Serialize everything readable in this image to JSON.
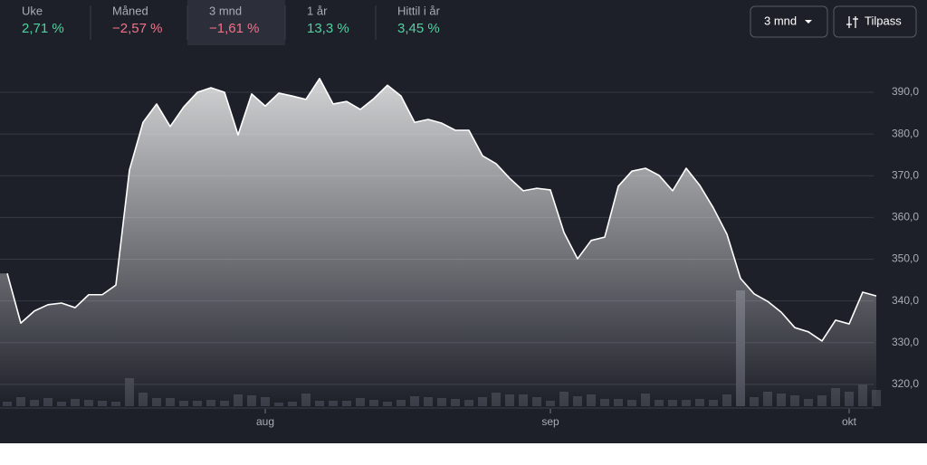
{
  "tabs": [
    {
      "label": "Uke",
      "value": "2,71 %",
      "color": "#4fd1a0"
    },
    {
      "label": "Måned",
      "value": "−2,57 %",
      "color": "#f0728a"
    },
    {
      "label": "3 mnd",
      "value": "−1,61 %",
      "color": "#f0728a",
      "selected": true
    },
    {
      "label": "1 år",
      "value": "13,3 %",
      "color": "#4fd1a0"
    },
    {
      "label": "Hittil i år",
      "value": "3,45 %",
      "color": "#4fd1a0"
    }
  ],
  "period_select": "3 mnd",
  "customize_button": "Tilpass",
  "chart_data": {
    "type": "line",
    "categories": [
      null,
      null,
      null,
      null,
      null,
      null,
      null,
      null,
      null,
      null,
      null,
      null,
      null,
      null,
      null,
      null,
      null,
      null,
      null,
      "aug",
      null,
      null,
      null,
      null,
      null,
      null,
      null,
      null,
      null,
      null,
      null,
      null,
      null,
      null,
      null,
      null,
      null,
      null,
      null,
      null,
      "sep",
      null,
      null,
      null,
      null,
      null,
      null,
      null,
      null,
      null,
      null,
      null,
      null,
      null,
      null,
      null,
      null,
      null,
      null,
      null,
      null,
      null,
      "okt",
      null,
      null
    ],
    "values": [
      346.6,
      334.7,
      337.6,
      339.1,
      339.5,
      338.4,
      341.5,
      341.5,
      343.8,
      371.4,
      382.8,
      387.2,
      381.8,
      386.5,
      390.0,
      391.1,
      390.0,
      379.8,
      389.6,
      386.7,
      389.8,
      389.1,
      388.3,
      393.3,
      387.2,
      387.8,
      385.9,
      388.5,
      391.7,
      389.1,
      382.8,
      383.5,
      382.6,
      380.9,
      380.9,
      374.8,
      372.9,
      369.4,
      366.4,
      367.0,
      366.6,
      356.4,
      350.1,
      354.5,
      355.3,
      367.5,
      371.1,
      371.8,
      370.1,
      366.4,
      371.8,
      367.7,
      362.3,
      356.0,
      345.4,
      341.7,
      339.9,
      337.3,
      333.6,
      332.6,
      330.4,
      335.4,
      334.5,
      342.1,
      341.2
    ],
    "volume": [
      5,
      10,
      7,
      9,
      5,
      8,
      7,
      6,
      5,
      31,
      15,
      9,
      9,
      6,
      6,
      7,
      6,
      13,
      12,
      10,
      4,
      5,
      14,
      6,
      6,
      6,
      9,
      7,
      5,
      7,
      11,
      10,
      9,
      8,
      7,
      10,
      15,
      13,
      13,
      10,
      6,
      16,
      11,
      13,
      8,
      8,
      7,
      14,
      7,
      7,
      7,
      8,
      7,
      13,
      128,
      10,
      16,
      14,
      12,
      8,
      12,
      20,
      16,
      24,
      18
    ],
    "color": "#ffffff",
    "volume_color": "#3b3e48",
    "ylim": [
      315,
      400
    ],
    "yticks": [
      {
        "value": 320,
        "label": "320,0"
      },
      {
        "value": 330,
        "label": "330,0"
      },
      {
        "value": 340,
        "label": "340,0"
      },
      {
        "value": 350,
        "label": "350,0"
      },
      {
        "value": 360,
        "label": "360,0"
      },
      {
        "value": 370,
        "label": "370,0"
      },
      {
        "value": 380,
        "label": "380,0"
      },
      {
        "value": 390,
        "label": "390,0"
      }
    ],
    "grid": true,
    "y_axis_side": "right"
  }
}
